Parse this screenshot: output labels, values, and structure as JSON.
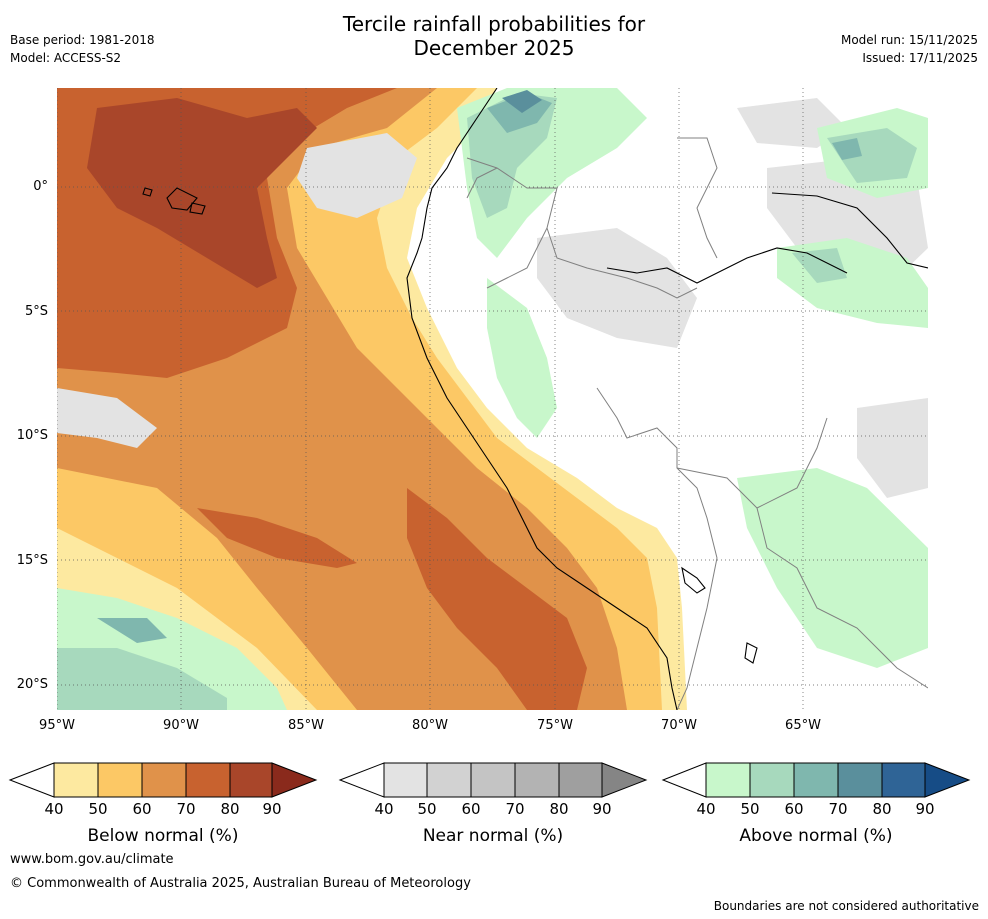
{
  "title": "Tercile rainfall probabilities for",
  "subtitle": "December 2025",
  "base_period": "Base period: 1981-2018",
  "model": "Model: ACCESS-S2",
  "model_run": "Model run: 15/11/2025",
  "issued": "Issued: 17/11/2025",
  "lat_labels": [
    "0°",
    "5°S",
    "10°S",
    "15°S",
    "20°S"
  ],
  "lon_labels": [
    "95°W",
    "90°W",
    "85°W",
    "80°W",
    "75°W",
    "70°W",
    "65°W"
  ],
  "legends": [
    {
      "name": "Below normal (%)",
      "ticks": [
        "40",
        "50",
        "60",
        "70",
        "80",
        "90"
      ],
      "colors": [
        "#fde9a0",
        "#fcc865",
        "#e0924a",
        "#c8622f",
        "#a9462a",
        "#8a2a1c"
      ]
    },
    {
      "name": "Near normal (%)",
      "ticks": [
        "40",
        "50",
        "60",
        "70",
        "80",
        "90"
      ],
      "colors": [
        "#e3e3e3",
        "#d2d2d2",
        "#c4c4c4",
        "#b3b3b3",
        "#9f9f9f",
        "#858585"
      ]
    },
    {
      "name": "Above normal (%)",
      "ticks": [
        "40",
        "50",
        "60",
        "70",
        "80",
        "90"
      ],
      "colors": [
        "#c8f7cb",
        "#a7d9bd",
        "#7fb7ae",
        "#5a8f9c",
        "#2f6496",
        "#164c86"
      ]
    }
  ],
  "website": "www.bom.gov.au/climate",
  "copyright": "© Commonwealth of Australia 2025, Australian Bureau of Meteorology",
  "disclaimer": "Boundaries are not considered authoritative",
  "colors": {
    "below": [
      "#fde9a0",
      "#fcc865",
      "#e0924a",
      "#c8622f",
      "#a9462a"
    ],
    "near": [
      "#e3e3e3",
      "#d2d2d2"
    ],
    "above": [
      "#c8f7cb",
      "#a7d9bd",
      "#7fb7ae",
      "#5a8f9c"
    ]
  }
}
